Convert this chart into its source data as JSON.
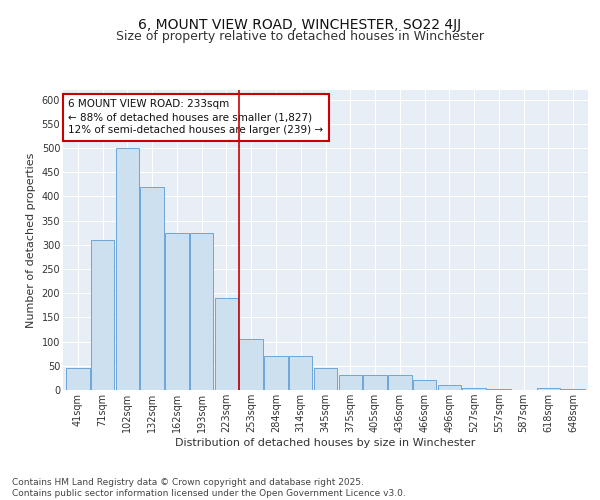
{
  "title": "6, MOUNT VIEW ROAD, WINCHESTER, SO22 4JJ",
  "subtitle": "Size of property relative to detached houses in Winchester",
  "xlabel": "Distribution of detached houses by size in Winchester",
  "ylabel": "Number of detached properties",
  "categories": [
    "41sqm",
    "71sqm",
    "102sqm",
    "132sqm",
    "162sqm",
    "193sqm",
    "223sqm",
    "253sqm",
    "284sqm",
    "314sqm",
    "345sqm",
    "375sqm",
    "405sqm",
    "436sqm",
    "466sqm",
    "496sqm",
    "527sqm",
    "557sqm",
    "587sqm",
    "618sqm",
    "648sqm"
  ],
  "values": [
    45,
    310,
    500,
    420,
    325,
    325,
    190,
    105,
    70,
    70,
    45,
    30,
    30,
    30,
    20,
    10,
    5,
    2,
    0,
    5,
    2
  ],
  "bar_color": "#cce0f0",
  "bar_edge_color": "#5b9bd5",
  "vline_color": "#cc0000",
  "annotation_text": "6 MOUNT VIEW ROAD: 233sqm\n← 88% of detached houses are smaller (1,827)\n12% of semi-detached houses are larger (239) →",
  "annotation_box_color": "#ffffff",
  "annotation_box_edge": "#cc0000",
  "ylim": [
    0,
    620
  ],
  "yticks": [
    0,
    50,
    100,
    150,
    200,
    250,
    300,
    350,
    400,
    450,
    500,
    550,
    600
  ],
  "background_color": "#e8eef5",
  "grid_color": "#ffffff",
  "footer_text": "Contains HM Land Registry data © Crown copyright and database right 2025.\nContains public sector information licensed under the Open Government Licence v3.0.",
  "title_fontsize": 10,
  "subtitle_fontsize": 9,
  "axis_label_fontsize": 8,
  "tick_fontsize": 7,
  "annotation_fontsize": 7.5,
  "footer_fontsize": 6.5
}
